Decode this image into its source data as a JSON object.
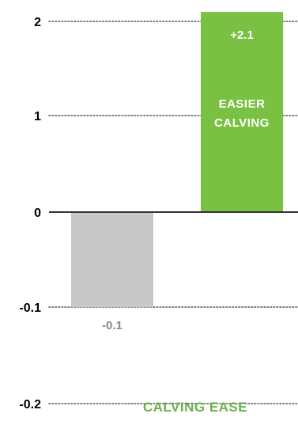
{
  "chart_data": {
    "type": "bar",
    "xlabel": "CALVING EASE",
    "ylabel": "",
    "title": "",
    "y_ticks": [
      {
        "value": 2,
        "label": "2"
      },
      {
        "value": 1,
        "label": "1"
      },
      {
        "value": 0,
        "label": "0"
      },
      {
        "value": -0.1,
        "label": "-0.1"
      },
      {
        "value": -0.2,
        "label": "-0.2"
      }
    ],
    "axis_note": "non-linear y-axis: tick labels 2, 1, 0, -0.1, -0.2",
    "grid": true,
    "series": [
      {
        "values": [
          -0.1,
          2.1
        ],
        "labels": [
          "-0.1",
          "+2.1"
        ],
        "colors": [
          "#c8c8c8",
          "#7ac143"
        ],
        "label_colors": [
          "#888888",
          "#ffffff"
        ],
        "notes": [
          "",
          "EASIER CALVING"
        ]
      }
    ],
    "categories": [
      "",
      ""
    ]
  },
  "colors": {
    "grid": "#555555",
    "zero_line": "#333333",
    "xlabel": "#6ab04c"
  }
}
